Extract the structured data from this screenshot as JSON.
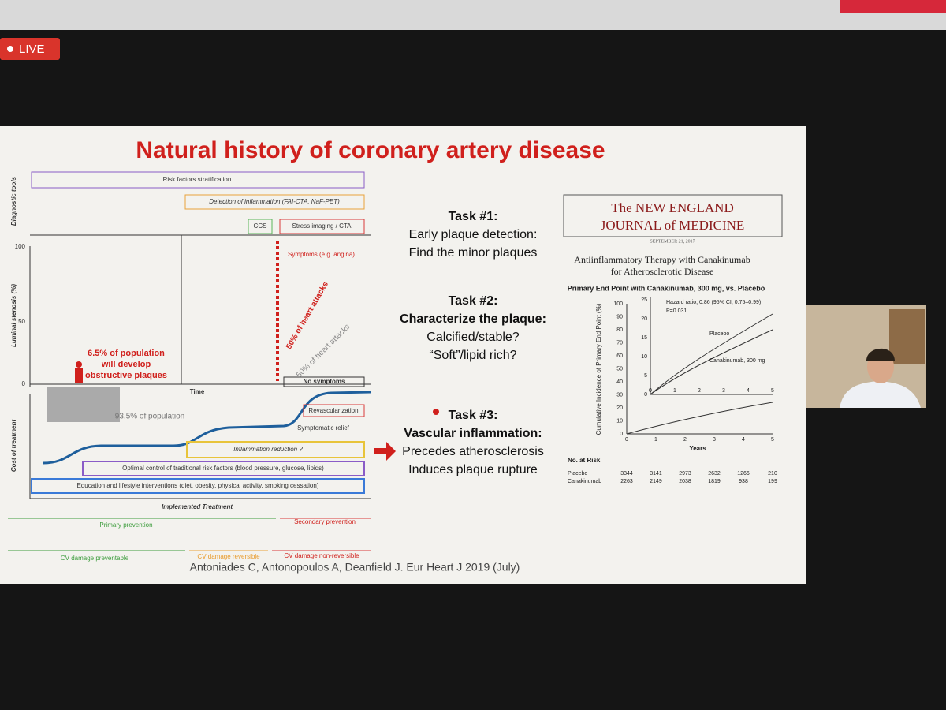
{
  "live_badge": "LIVE",
  "slide": {
    "title": "Natural history of coronary artery disease",
    "diagram": {
      "axis_labels": {
        "diagnostic": "Diagnostic tools",
        "stenosis": "Luminal stenosis (%)",
        "cost": "Cost of treatment",
        "time": "Time",
        "treatment": "Implemented Treatment"
      },
      "y_ticks": [
        "100",
        "50",
        "0"
      ],
      "tools": [
        "Risk factors stratification",
        "Detection of inflammation (FAI-CTA, NaF-PET)",
        "CCS",
        "Stress imaging / CTA"
      ],
      "annotations": {
        "symptoms": "Symptoms (e.g. angina)",
        "heart_attacks_1": "50% of heart attacks",
        "heart_attacks_2": "50% of heart attacks",
        "no_symptoms": "No symptoms",
        "population_plaques": [
          "6.5% of population",
          "will develop",
          "obstructive plaques"
        ],
        "population_rest": "93.5% of population"
      },
      "treatments": [
        "Revascularization",
        "Symptomatic relief",
        "Inflammation reduction ?",
        "Optimal control of traditional risk factors (blood pressure, glucose, lipids)",
        "Education and lifestyle interventions (diet, obesity, physical activity, smoking cessation)"
      ],
      "prevention": [
        "Primary prevention",
        "Secondary prevention"
      ],
      "damage": [
        "CV damage preventable",
        "CV damage reversible",
        "CV damage non-reversible"
      ]
    },
    "tasks": [
      {
        "heading": "Task #1:",
        "lines": [
          "Early plaque detection:",
          "Find the minor plaques"
        ]
      },
      {
        "heading": "Task #2:",
        "lines": [
          "Characterize the plaque:",
          "Calcified/stable?",
          "“Soft”/lipid rich?"
        ]
      },
      {
        "heading": "Task #3:",
        "lines": [
          "Vascular inflammation:",
          "Precedes atherosclerosis",
          "Induces plaque rupture"
        ]
      }
    ],
    "citation": "Antoniades C, Antonopoulos A, Deanfield J. Eur Heart J 2019 (July)",
    "nejm": {
      "masthead": [
        "The NEW ENGLAND",
        "JOURNAL of MEDICINE"
      ],
      "date": "SEPTEMBER 21, 2017",
      "article": [
        "Antiinflammatory Therapy with Canakinumab",
        "for Atherosclerotic Disease"
      ],
      "chart_title": "Primary End Point with Canakinumab, 300 mg, vs. Placebo",
      "y_label": "Cumulative Incidence of Primary End Point (%)",
      "x_label": "Years",
      "y_ticks": [
        "0",
        "10",
        "20",
        "30",
        "40",
        "50",
        "60",
        "70",
        "80",
        "90",
        "100"
      ],
      "x_ticks": [
        "0",
        "1",
        "2",
        "3",
        "4",
        "5"
      ],
      "inset_y_ticks": [
        "0",
        "5",
        "10",
        "15",
        "20",
        "25"
      ],
      "inset_x_ticks": [
        "0",
        "1",
        "2",
        "3",
        "4",
        "5"
      ],
      "hazard": [
        "Hazard ratio, 0.86 (95% CI, 0.75–0.99)",
        "P=0.031"
      ],
      "series_labels": [
        "Placebo",
        "Canakinumab, 300 mg"
      ],
      "risk_table": {
        "title": "No. at Risk",
        "rows": [
          [
            "Placebo",
            "3344",
            "3141",
            "2973",
            "2632",
            "1266",
            "210"
          ],
          [
            "Canakinumab",
            "2263",
            "2149",
            "2038",
            "1819",
            "938",
            "199"
          ]
        ]
      }
    }
  }
}
